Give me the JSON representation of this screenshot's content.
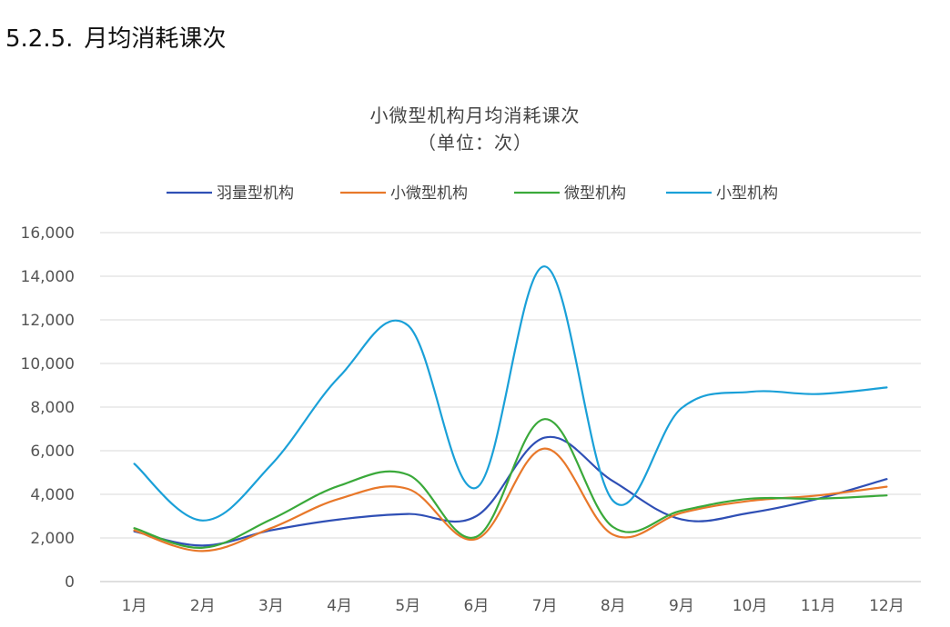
{
  "section": {
    "number": "5.2.5.",
    "title": "月均消耗课次"
  },
  "chart_data": {
    "type": "line",
    "title": "小微型机构月均消耗课次",
    "subtitle": "（单位：次）",
    "xlabel": "",
    "ylabel": "",
    "categories": [
      "1月",
      "2月",
      "3月",
      "4月",
      "5月",
      "6月",
      "7月",
      "8月",
      "9月",
      "10月",
      "11月",
      "12月"
    ],
    "ylim": [
      0,
      16000
    ],
    "yticks": [
      "0",
      "2,000",
      "4,000",
      "6,000",
      "8,000",
      "10,000",
      "12,000",
      "14,000",
      "16,000"
    ],
    "grid": true,
    "legend_position": "top",
    "smooth": true,
    "series": [
      {
        "name": "羽量型机构",
        "color": "#2f4fb5",
        "values": [
          2300,
          1650,
          2350,
          2850,
          3100,
          3000,
          6600,
          4600,
          2850,
          3150,
          3800,
          4700
        ]
      },
      {
        "name": "小微型机构",
        "color": "#e8782a",
        "values": [
          2350,
          1400,
          2450,
          3800,
          4250,
          1950,
          6100,
          2150,
          3150,
          3700,
          3950,
          4350
        ]
      },
      {
        "name": "微型机构",
        "color": "#3aa93a",
        "values": [
          2450,
          1550,
          2850,
          4400,
          4900,
          2050,
          7450,
          2500,
          3250,
          3800,
          3800,
          3950
        ]
      },
      {
        "name": "小型机构",
        "color": "#1aa0d8",
        "values": [
          5400,
          2800,
          5350,
          9400,
          11750,
          4300,
          14450,
          3700,
          7950,
          8700,
          8600,
          8900
        ]
      }
    ]
  }
}
